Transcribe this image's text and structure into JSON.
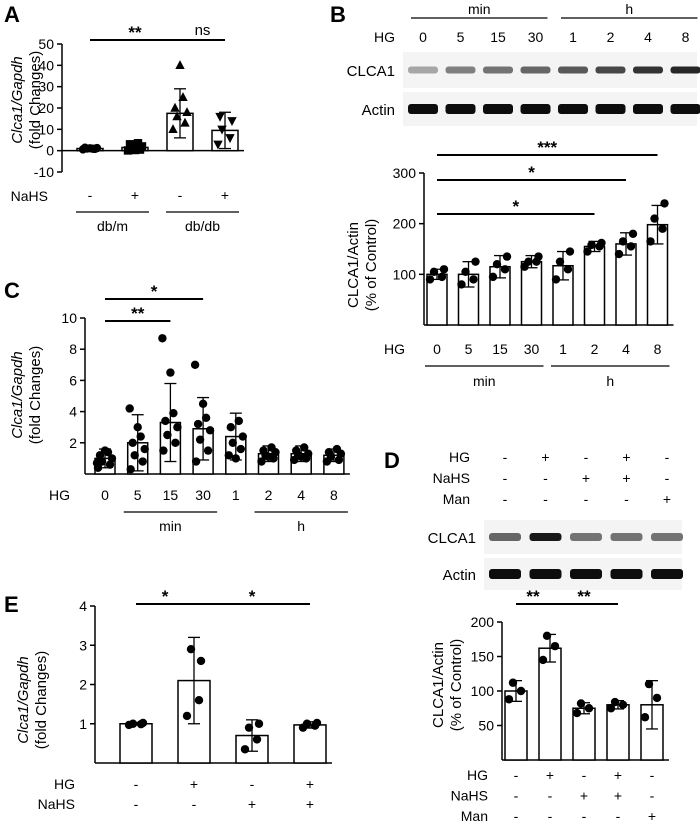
{
  "panels": [
    {
      "id": "A",
      "label": "A",
      "ylabel_italic": "Clca1/Gapdh",
      "ylabel_sub": "(fold Changes)",
      "ylim": [
        -10,
        50
      ],
      "yticks": [
        -10,
        0,
        10,
        20,
        30,
        40,
        50
      ],
      "bars": [
        {
          "mean": 1.0,
          "err": 0.5,
          "points": [
            0.6,
            0.8,
            1.0,
            1.2,
            1.4,
            0.9,
            1.1
          ],
          "marker": "circle"
        },
        {
          "mean": 1.5,
          "err": 2.2,
          "points": [
            0.1,
            0.5,
            1.0,
            2.0,
            3.0,
            3.5,
            0.3
          ],
          "marker": "square"
        },
        {
          "mean": 17.5,
          "err": 11.5,
          "points": [
            10.0,
            13.0,
            16.0,
            18.0,
            20.0,
            25.0,
            40.0
          ],
          "marker": "triangle-up"
        },
        {
          "mean": 9.5,
          "err": 8.5,
          "points": [
            3.0,
            6.0,
            10.0,
            14.0,
            16.0
          ],
          "marker": "triangle-down"
        }
      ],
      "row_label": "NaHS",
      "row_signs": [
        "-",
        "+",
        "-",
        "+"
      ],
      "groups": [
        {
          "label": "db/m",
          "span": [
            0,
            1
          ]
        },
        {
          "label": "db/db",
          "span": [
            2,
            3
          ]
        }
      ],
      "sig": [
        {
          "from": 0,
          "to": 2,
          "text": "**"
        },
        {
          "from": 2,
          "to": 3,
          "text": "ns"
        }
      ]
    },
    {
      "id": "B",
      "label": "B",
      "blot": {
        "hg_label": "HG",
        "timepoints": [
          "0",
          "5",
          "15",
          "30",
          "1",
          "2",
          "4",
          "8"
        ],
        "unit_groups": [
          {
            "label": "min",
            "span": [
              0,
              3
            ]
          },
          {
            "label": "h",
            "span": [
              4,
              7
            ]
          }
        ],
        "rows": [
          {
            "label": "CLCA1",
            "intensity": [
              0.35,
              0.5,
              0.55,
              0.6,
              0.65,
              0.72,
              0.8,
              0.85
            ]
          },
          {
            "label": "Actin",
            "intensity": [
              0.95,
              0.95,
              0.95,
              0.95,
              0.95,
              0.95,
              0.95,
              0.95
            ]
          }
        ]
      },
      "ylabel": "CLCA1/Actin",
      "ylabel_sub": "(% of Control)",
      "ylim": [
        0,
        300
      ],
      "yticks": [
        100,
        200,
        300
      ],
      "bars": [
        {
          "mean": 100,
          "err": 10,
          "points": [
            90,
            95,
            105,
            110
          ]
        },
        {
          "mean": 100,
          "err": 25,
          "points": [
            80,
            90,
            105,
            125
          ]
        },
        {
          "mean": 115,
          "err": 22,
          "points": [
            95,
            110,
            120,
            135
          ]
        },
        {
          "mean": 125,
          "err": 12,
          "points": [
            115,
            125,
            125,
            135
          ]
        },
        {
          "mean": 117,
          "err": 28,
          "points": [
            90,
            110,
            125,
            145
          ]
        },
        {
          "mean": 155,
          "err": 10,
          "points": [
            145,
            155,
            158,
            162
          ]
        },
        {
          "mean": 160,
          "err": 22,
          "points": [
            140,
            155,
            165,
            180
          ]
        },
        {
          "mean": 198,
          "err": 38,
          "points": [
            165,
            190,
            210,
            240
          ]
        }
      ],
      "row_label": "HG",
      "row_categories": [
        "0",
        "5",
        "15",
        "30",
        "1",
        "2",
        "4",
        "8"
      ],
      "groups": [
        {
          "label": "min",
          "span": [
            0,
            3
          ]
        },
        {
          "label": "h",
          "span": [
            4,
            7
          ]
        }
      ],
      "sig": [
        {
          "from": 0,
          "to": 7,
          "text": "***"
        },
        {
          "from": 0,
          "to": 6,
          "text": "*"
        },
        {
          "from": 0,
          "to": 5,
          "text": "*"
        }
      ]
    },
    {
      "id": "C",
      "label": "C",
      "ylabel_italic": "Clca1/Gapdh",
      "ylabel_sub": "(fold  Changes)",
      "ylim": [
        0,
        10
      ],
      "yticks": [
        2,
        4,
        6,
        8,
        10
      ],
      "bars": [
        {
          "mean": 1.0,
          "err": 0.6,
          "points": [
            0.4,
            0.6,
            0.8,
            1.0,
            1.2,
            1.4,
            1.5,
            0.7
          ]
        },
        {
          "mean": 2.0,
          "err": 1.8,
          "points": [
            0.3,
            0.8,
            1.2,
            1.6,
            2.0,
            2.4,
            3.0,
            4.2
          ]
        },
        {
          "mean": 3.3,
          "err": 2.5,
          "points": [
            1.5,
            2.0,
            2.5,
            3.0,
            3.4,
            3.9,
            6.5,
            8.7
          ]
        },
        {
          "mean": 2.9,
          "err": 2.0,
          "points": [
            0.8,
            1.5,
            2.2,
            2.8,
            3.2,
            3.6,
            4.5,
            7.0
          ]
        },
        {
          "mean": 2.4,
          "err": 1.5,
          "points": [
            1.2,
            1.6,
            2.0,
            2.4,
            3.0,
            3.4,
            1.0
          ]
        },
        {
          "mean": 1.3,
          "err": 0.5,
          "points": [
            0.8,
            1.0,
            1.2,
            1.4,
            1.5,
            1.7,
            1.1
          ]
        },
        {
          "mean": 1.3,
          "err": 0.5,
          "points": [
            0.9,
            1.0,
            1.2,
            1.3,
            1.5,
            1.7,
            1.1
          ]
        },
        {
          "mean": 1.2,
          "err": 0.4,
          "points": [
            0.8,
            0.9,
            1.1,
            1.3,
            1.4,
            1.6
          ]
        }
      ],
      "row_label": "HG",
      "row_categories": [
        "0",
        "5",
        "15",
        "30",
        "1",
        "2",
        "4",
        "8"
      ],
      "groups": [
        {
          "label": "min",
          "span": [
            1,
            3
          ]
        },
        {
          "label": "h",
          "span": [
            5,
            7
          ]
        }
      ],
      "sig": [
        {
          "from": 0,
          "to": 3,
          "text": "*"
        },
        {
          "from": 0,
          "to": 2,
          "text": "**"
        }
      ]
    },
    {
      "id": "D",
      "label": "D",
      "blot": {
        "header_rows": [
          {
            "label": "HG",
            "signs": [
              "-",
              "+",
              "-",
              "+",
              "-"
            ]
          },
          {
            "label": "NaHS",
            "signs": [
              "-",
              "-",
              "+",
              "+",
              "-"
            ]
          },
          {
            "label": "Man",
            "signs": [
              "-",
              "-",
              "-",
              "-",
              "+"
            ]
          }
        ],
        "rows": [
          {
            "label": "CLCA1",
            "intensity": [
              0.6,
              0.9,
              0.55,
              0.55,
              0.55
            ]
          },
          {
            "label": "Actin",
            "intensity": [
              0.95,
              0.95,
              0.95,
              0.95,
              0.95
            ]
          }
        ]
      },
      "ylabel": "CLCA1/Actin",
      "ylabel_sub": "(% of Control)",
      "ylim": [
        0,
        200
      ],
      "yticks": [
        50,
        100,
        150,
        200
      ],
      "bars": [
        {
          "mean": 100,
          "err": 15,
          "points": [
            88,
            100,
            112
          ]
        },
        {
          "mean": 162,
          "err": 20,
          "points": [
            145,
            165,
            180
          ]
        },
        {
          "mean": 75,
          "err": 8,
          "points": [
            68,
            75,
            82
          ]
        },
        {
          "mean": 80,
          "err": 6,
          "points": [
            75,
            80,
            84
          ]
        },
        {
          "mean": 80,
          "err": 35,
          "points": [
            62,
            90,
            110
          ]
        }
      ],
      "row_rows": [
        {
          "label": "HG",
          "signs": [
            "-",
            "+",
            "-",
            "+",
            "-"
          ]
        },
        {
          "label": "NaHS",
          "signs": [
            "-",
            "-",
            "+",
            "+",
            "-"
          ]
        },
        {
          "label": "Man",
          "signs": [
            "-",
            "-",
            "-",
            "-",
            "+"
          ]
        }
      ],
      "sig": [
        {
          "from": 0,
          "to": 1,
          "text": "**"
        },
        {
          "from": 1,
          "to": 3,
          "text": "**"
        }
      ]
    },
    {
      "id": "E",
      "label": "E",
      "ylabel_italic": "Clca1/Gapdh",
      "ylabel_sub": "(fold  Changes)",
      "ylim": [
        0,
        4
      ],
      "yticks": [
        1,
        2,
        3,
        4
      ],
      "bars": [
        {
          "mean": 1.0,
          "err": 0.03,
          "points": [
            0.97,
            0.99,
            1.0,
            1.02
          ]
        },
        {
          "mean": 2.1,
          "err": 1.1,
          "points": [
            1.2,
            1.6,
            2.9,
            2.6
          ]
        },
        {
          "mean": 0.7,
          "err": 0.4,
          "points": [
            0.35,
            0.6,
            0.9,
            1.0
          ]
        },
        {
          "mean": 0.97,
          "err": 0.08,
          "points": [
            0.9,
            0.95,
            1.0,
            1.02
          ]
        }
      ],
      "row_rows": [
        {
          "label": "HG",
          "signs": [
            "-",
            "+",
            "-",
            "+"
          ]
        },
        {
          "label": "NaHS",
          "signs": [
            "-",
            "-",
            "+",
            "+"
          ]
        }
      ],
      "sig": [
        {
          "from": 0,
          "to": 1,
          "text": "*"
        },
        {
          "from": 1,
          "to": 3,
          "text": "*"
        }
      ]
    }
  ],
  "chart_data": [
    {
      "type": "bar",
      "panel": "A",
      "categories": [
        "db/m NaHS -",
        "db/m NaHS +",
        "db/db NaHS -",
        "db/db NaHS +"
      ],
      "values": [
        1.0,
        1.5,
        17.5,
        9.5
      ],
      "ylabel": "Clca1/Gapdh (fold Changes)",
      "ylim": [
        -10,
        50
      ]
    },
    {
      "type": "bar",
      "panel": "B",
      "categories": [
        "0 min",
        "5 min",
        "15 min",
        "30 min",
        "1 h",
        "2 h",
        "4 h",
        "8 h"
      ],
      "values": [
        100,
        100,
        115,
        125,
        117,
        155,
        160,
        198
      ],
      "ylabel": "CLCA1/Actin (% of Control)",
      "ylim": [
        0,
        300
      ]
    },
    {
      "type": "bar",
      "panel": "C",
      "categories": [
        "0 min",
        "5 min",
        "15 min",
        "30 min",
        "1 h",
        "2 h",
        "4 h",
        "8 h"
      ],
      "values": [
        1.0,
        2.0,
        3.3,
        2.9,
        2.4,
        1.3,
        1.3,
        1.2
      ],
      "ylabel": "Clca1/Gapdh (fold Changes)",
      "ylim": [
        0,
        10
      ]
    },
    {
      "type": "bar",
      "panel": "D",
      "categories": [
        "Control",
        "HG",
        "NaHS",
        "HG+NaHS",
        "Man"
      ],
      "values": [
        100,
        162,
        75,
        80,
        80
      ],
      "ylabel": "CLCA1/Actin (% of Control)",
      "ylim": [
        0,
        200
      ]
    },
    {
      "type": "bar",
      "panel": "E",
      "categories": [
        "Control",
        "HG",
        "NaHS",
        "HG+NaHS"
      ],
      "values": [
        1.0,
        2.1,
        0.7,
        0.97
      ],
      "ylabel": "Clca1/Gapdh (fold Changes)",
      "ylim": [
        0,
        4
      ]
    }
  ]
}
